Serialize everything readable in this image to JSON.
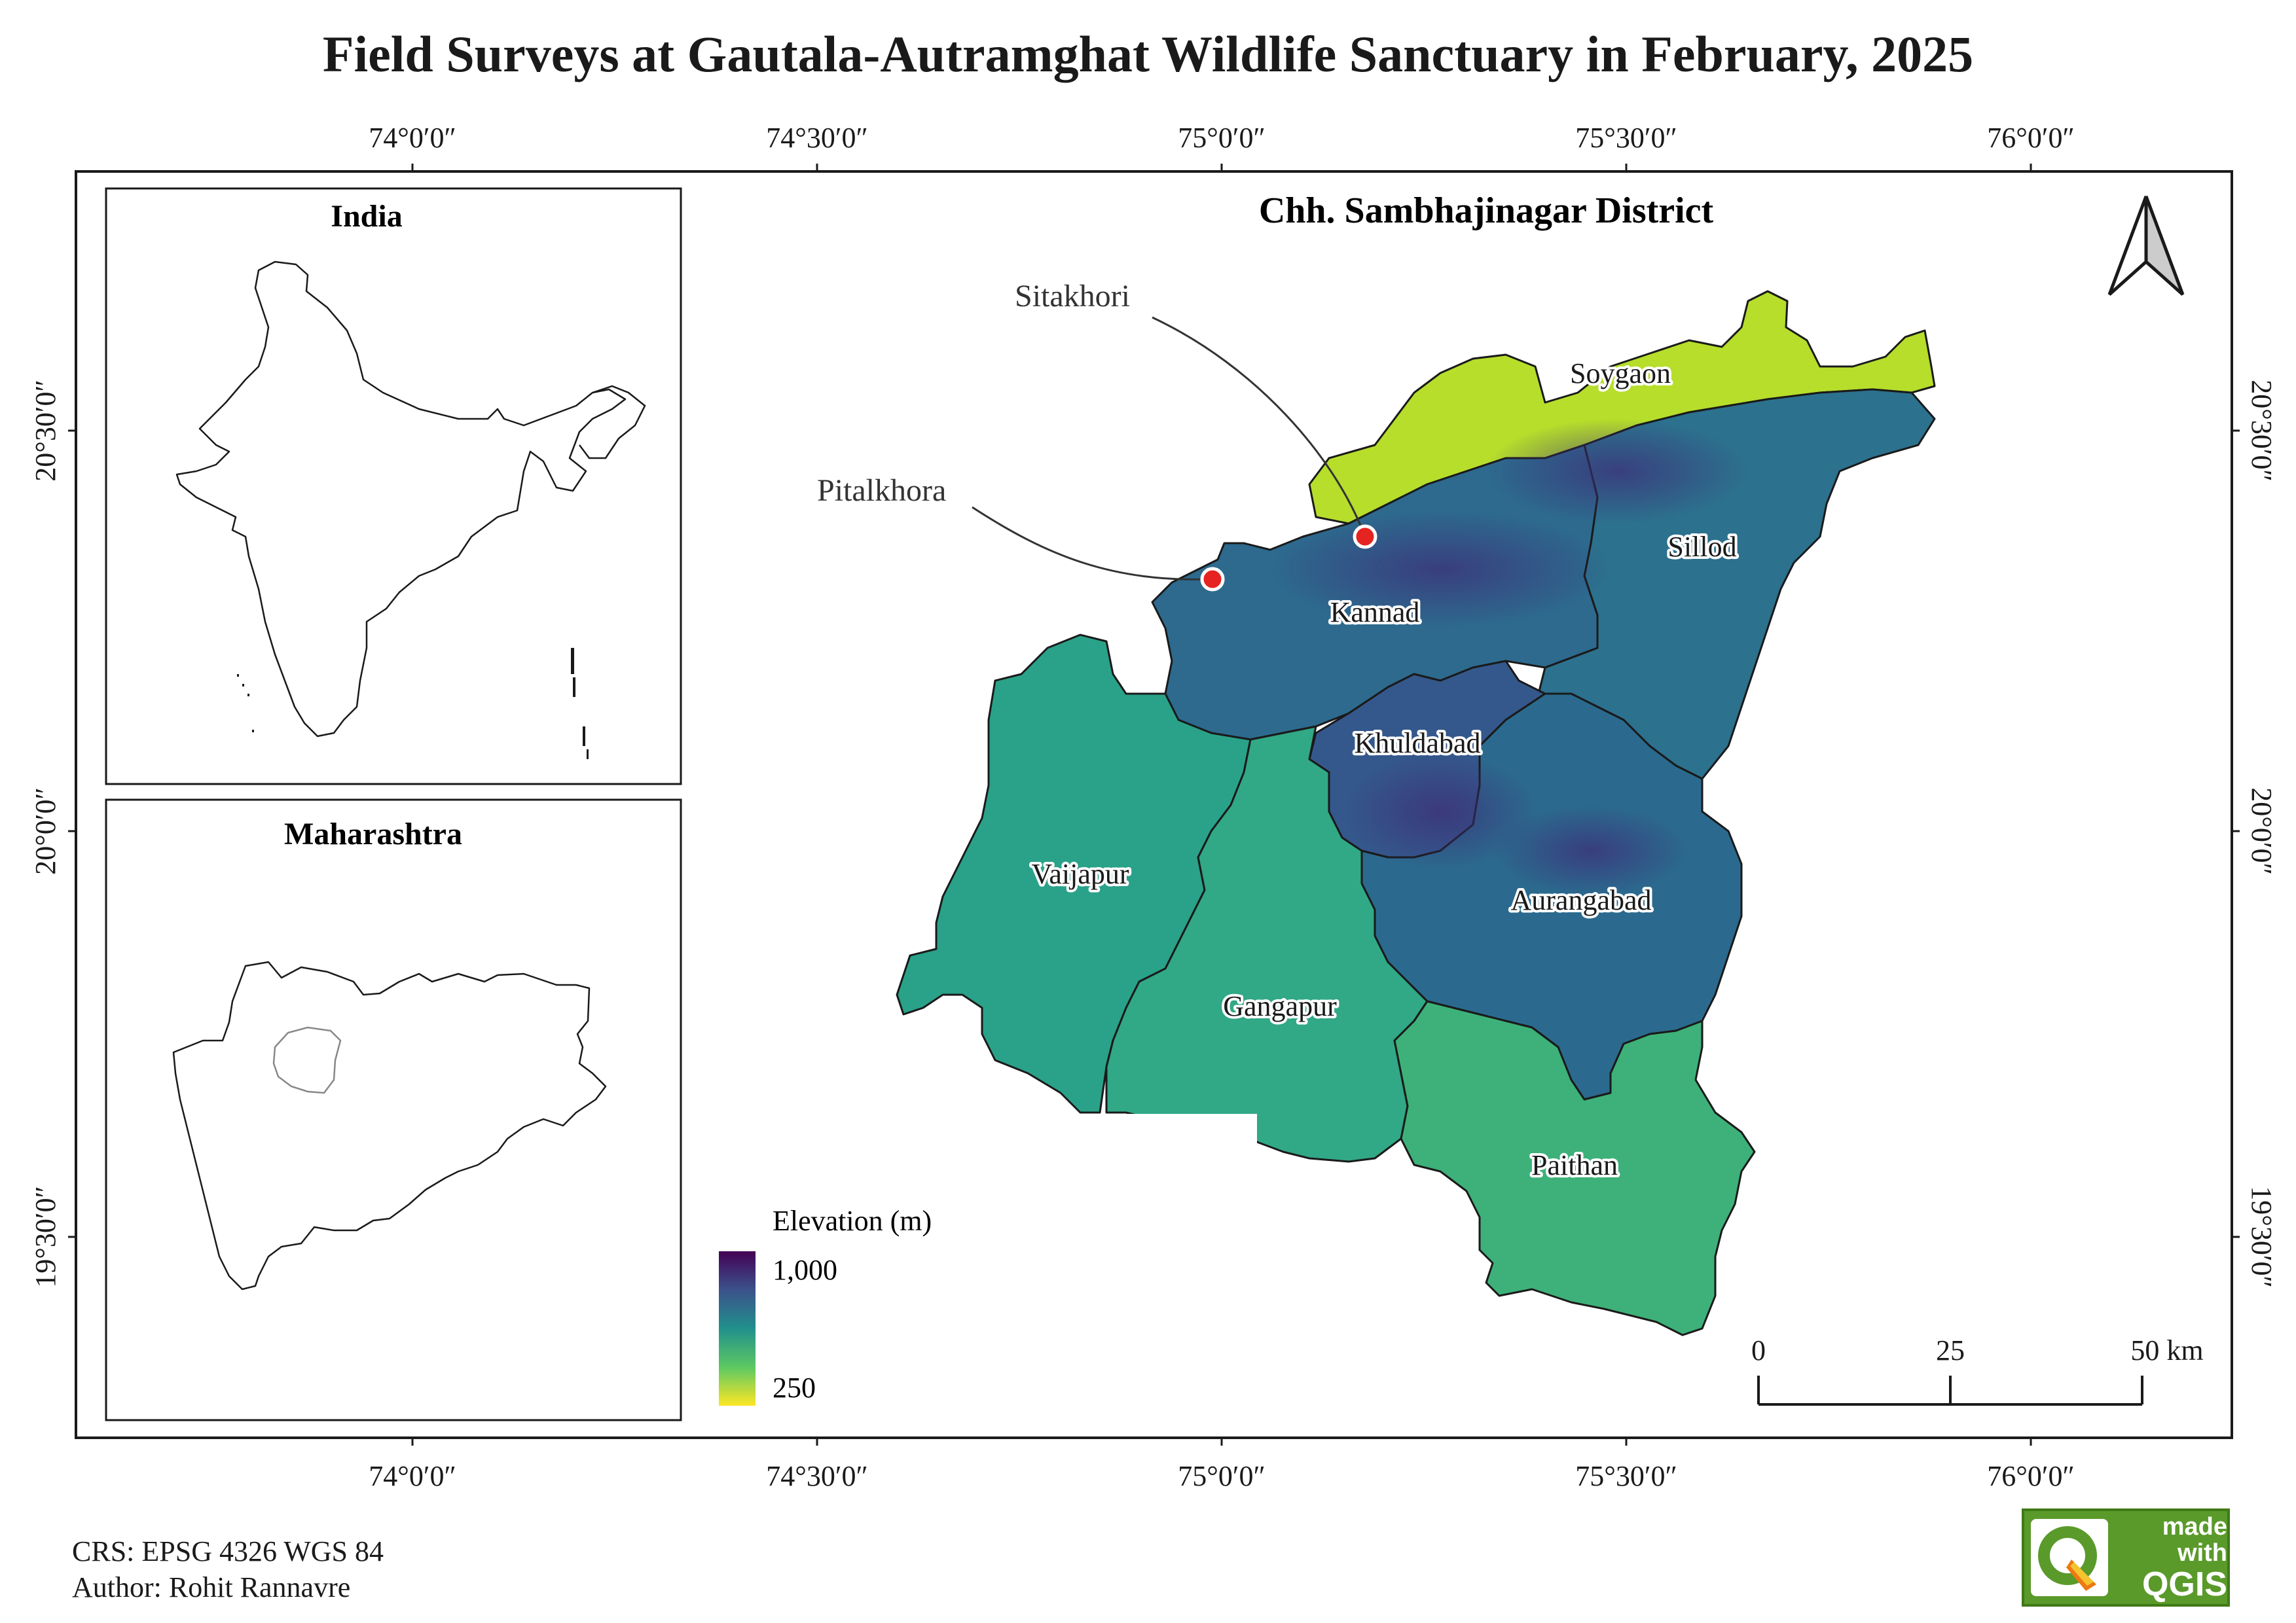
{
  "title": "Field Surveys at Gautala-Autramghat Wildlife Sanctuary in February, 2025",
  "map_title": "Chh. Sambhajinagar District",
  "coordinates": {
    "lon_labels": [
      "74°0′0″",
      "74°30′0″",
      "75°0′0″",
      "75°30′0″",
      "76°0′0″"
    ],
    "lat_labels": [
      "20°30′0″",
      "20°0′0″",
      "19°30′0″"
    ]
  },
  "insets": {
    "india": {
      "title": "India"
    },
    "maharashtra": {
      "title": "Maharashtra"
    }
  },
  "talukas": [
    "Soygaon",
    "Sillod",
    "Kannad",
    "Khuldabad",
    "Vaijapur",
    "Aurangabad",
    "Gangapur",
    "Paithan"
  ],
  "survey_sites": [
    "Sitakhori",
    "Pitalkhora"
  ],
  "legend": {
    "title": "Elevation (m)",
    "max_label": "1,000",
    "min_label": "250",
    "colors": [
      "#440154",
      "#3b528b",
      "#21908c",
      "#5dc863",
      "#fde725"
    ]
  },
  "scale_bar": {
    "labels": [
      "0",
      "25",
      "50 km"
    ]
  },
  "footer": {
    "crs": "CRS: EPSG 4326 WGS 84",
    "author": "Author: Rohit Rannavre"
  },
  "badge": {
    "line1": "made",
    "line2": "with",
    "line3": "QGIS"
  },
  "colors": {
    "site_marker": "#e52320",
    "boundary": "#1a1a1a"
  }
}
